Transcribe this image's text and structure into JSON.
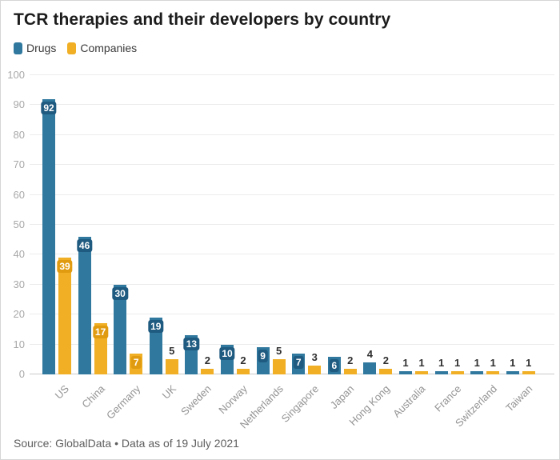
{
  "header": {
    "title": "TCR therapies and their developers by country"
  },
  "legend": [
    {
      "label": "Drugs",
      "color": "#30789e"
    },
    {
      "label": "Companies",
      "color": "#f0af24"
    }
  ],
  "footer": {
    "source": "Source: GlobalData • Data as of 19 July 2021"
  },
  "chart_data": {
    "type": "bar",
    "title": "TCR therapies and their developers by country",
    "categories": [
      "US",
      "China",
      "Germany",
      "UK",
      "Sweden",
      "Norway",
      "Netherlands",
      "Singapore",
      "Japan",
      "Hong Kong",
      "Australia",
      "France",
      "Switzerland",
      "Taiwan"
    ],
    "series": [
      {
        "name": "Drugs",
        "color": "#30789e",
        "label_chip_color": "#1f5a80",
        "values": [
          92,
          46,
          30,
          19,
          13,
          10,
          9,
          7,
          6,
          4,
          1,
          1,
          1,
          1
        ]
      },
      {
        "name": "Companies",
        "color": "#f0af24",
        "label_chip_color": "#e19b10",
        "values": [
          39,
          17,
          7,
          5,
          2,
          2,
          5,
          3,
          2,
          2,
          1,
          1,
          1,
          1
        ]
      }
    ],
    "xlabel": "",
    "ylabel": "",
    "ylim": [
      0,
      100
    ],
    "yticks": [
      0,
      10,
      20,
      30,
      40,
      50,
      60,
      70,
      80,
      90,
      100
    ],
    "grid": "horizontal",
    "legend_position": "top-left",
    "bar_value_labels": "inside-top chip when value >= 6, otherwise dark label above bar",
    "label_inside_min": 6
  }
}
